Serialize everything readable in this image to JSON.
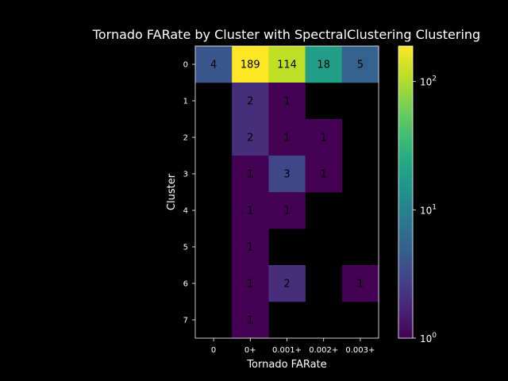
{
  "chart_data": {
    "type": "heatmap",
    "title": "Tornado FARate by Cluster with SpectralClustering Clustering",
    "xlabel": "Tornado FARate",
    "ylabel": "Cluster",
    "x_categories": [
      "0",
      "0+",
      "0.001+",
      "0.002+",
      "0.003+"
    ],
    "y_categories": [
      "0",
      "1",
      "2",
      "3",
      "4",
      "5",
      "6",
      "7"
    ],
    "values": [
      [
        4,
        189,
        114,
        18,
        5
      ],
      [
        null,
        2,
        1,
        null,
        null
      ],
      [
        null,
        2,
        1,
        1,
        null
      ],
      [
        null,
        1,
        3,
        1,
        null
      ],
      [
        null,
        1,
        1,
        null,
        null
      ],
      [
        null,
        1,
        null,
        null,
        null
      ],
      [
        null,
        1,
        2,
        null,
        1
      ],
      [
        null,
        1,
        null,
        null,
        null
      ]
    ],
    "colorbar": {
      "scale": "log",
      "range": [
        1,
        189
      ],
      "colormap": "viridis",
      "ticks": [
        {
          "value": 1,
          "base": "10",
          "exp": "0"
        },
        {
          "value": 10,
          "base": "10",
          "exp": "1"
        },
        {
          "value": 100,
          "base": "10",
          "exp": "2"
        }
      ]
    },
    "colors": {
      "background": "#000000",
      "text": "#ffffff",
      "cell_text": "#000000"
    }
  }
}
